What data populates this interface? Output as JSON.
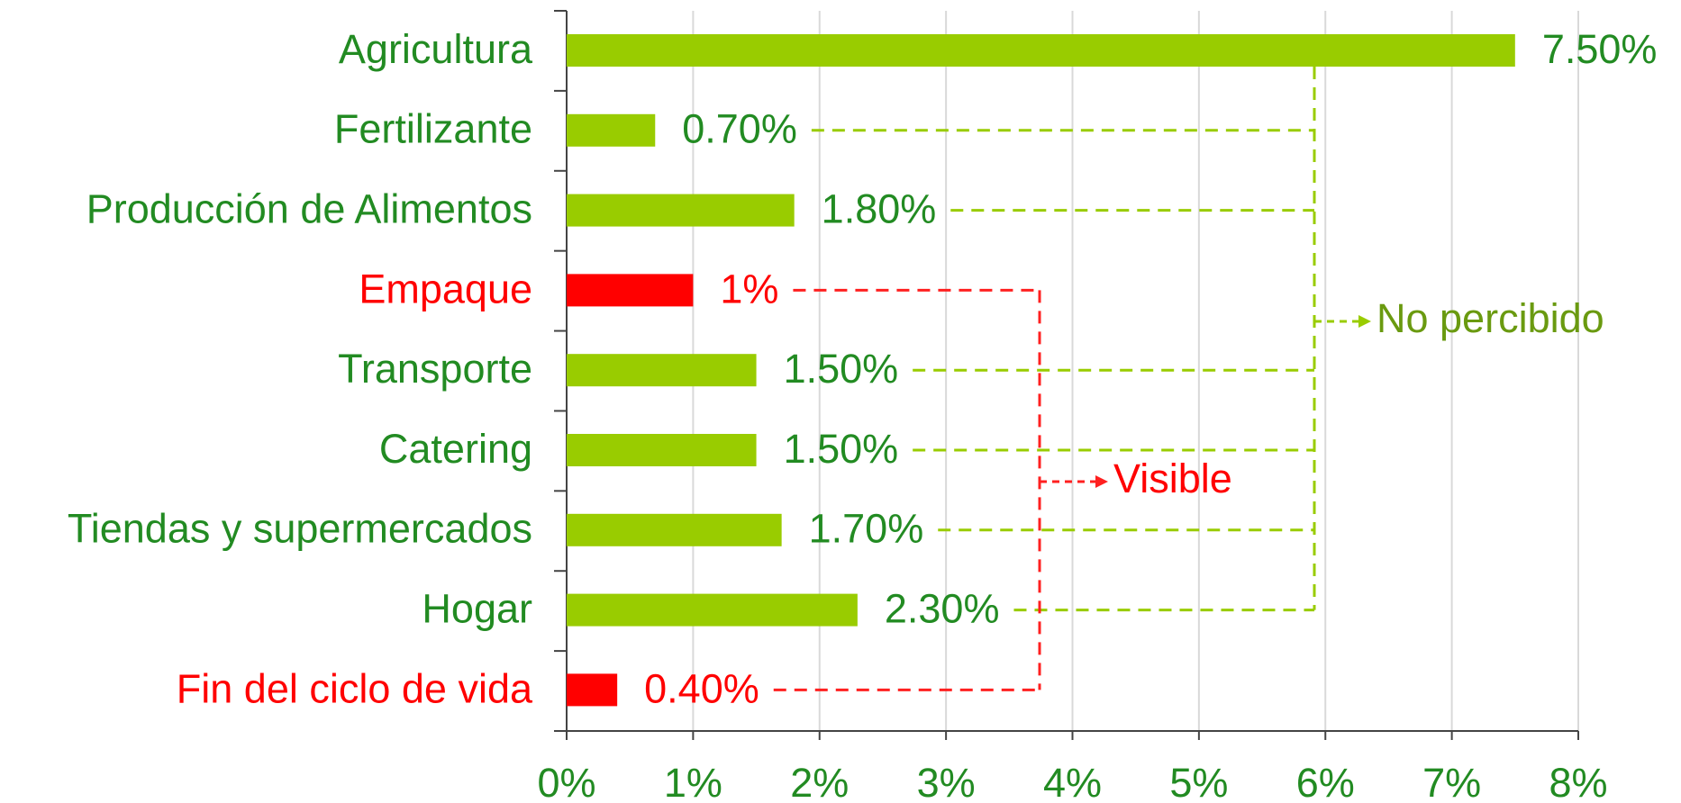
{
  "chart_data": {
    "type": "hbar",
    "categories": [
      "Agricultura",
      "Fertilizante",
      "Producción de Alimentos",
      "Empaque",
      "Transporte",
      "Catering",
      "Tiendas y supermercados",
      "Hogar",
      "Fin del ciclo de vida"
    ],
    "values": [
      7.5,
      0.7,
      1.8,
      1,
      1.5,
      1.5,
      1.7,
      2.3,
      0.4
    ],
    "value_labels": [
      "7.50%",
      "0.70%",
      "1.80%",
      "1%",
      "1.50%",
      "1.50%",
      "1.70%",
      "2.30%",
      "0.40%"
    ],
    "colors": [
      "#99cc00",
      "#99cc00",
      "#99cc00",
      "#ff0000",
      "#99cc00",
      "#99cc00",
      "#99cc00",
      "#99cc00",
      "#ff0000"
    ],
    "label_colors": [
      "#228b22",
      "#228b22",
      "#228b22",
      "#ff0000",
      "#228b22",
      "#228b22",
      "#228b22",
      "#228b22",
      "#ff0000"
    ],
    "xlim": [
      0,
      8
    ],
    "xticks": [
      {
        "value": 0,
        "label": "0%"
      },
      {
        "value": 1,
        "label": "1%"
      },
      {
        "value": 2,
        "label": "2%"
      },
      {
        "value": 3,
        "label": "3%"
      },
      {
        "value": 4,
        "label": "4%"
      },
      {
        "value": 5,
        "label": "5%"
      },
      {
        "value": 6,
        "label": "6%"
      },
      {
        "value": 7,
        "label": "7%"
      },
      {
        "value": 8,
        "label": "8%"
      }
    ],
    "grid": true,
    "annotations": [
      {
        "text": "No percibido",
        "color": "#6a9a10"
      },
      {
        "text": "Visible",
        "color": "#ff0000"
      }
    ]
  }
}
